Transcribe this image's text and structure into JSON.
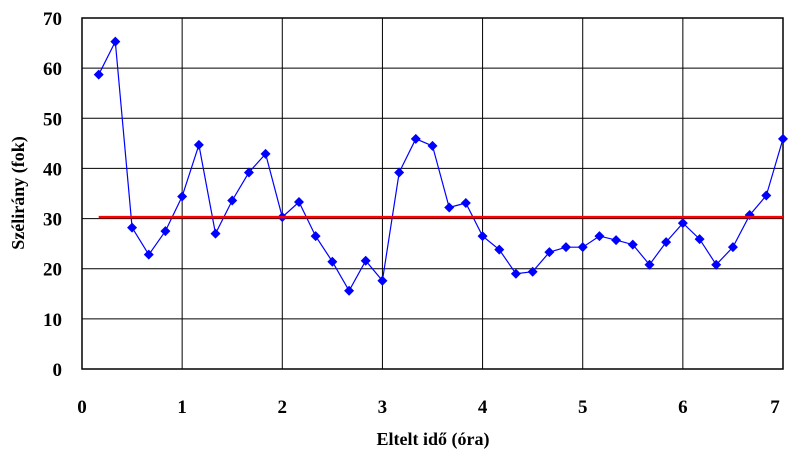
{
  "chart_data": {
    "type": "line",
    "title": "",
    "xlabel": "Eltelt idő (óra)",
    "ylabel": "Szélirány (fok)",
    "xlim": [
      0,
      7
    ],
    "ylim": [
      0,
      70
    ],
    "xticks": [
      0,
      1,
      2,
      3,
      4,
      5,
      6,
      7
    ],
    "yticks": [
      0,
      10,
      20,
      30,
      40,
      50,
      60,
      70
    ],
    "grid": true,
    "series": [
      {
        "color": "#0000ff",
        "marker": "diamond",
        "x": [
          0.167,
          0.333,
          0.5,
          0.667,
          0.833,
          1.0,
          1.167,
          1.333,
          1.5,
          1.667,
          1.833,
          2.0,
          2.167,
          2.333,
          2.5,
          2.667,
          2.833,
          3.0,
          3.167,
          3.333,
          3.5,
          3.667,
          3.833,
          4.0,
          4.167,
          4.333,
          4.5,
          4.667,
          4.833,
          5.0,
          5.167,
          5.333,
          5.5,
          5.667,
          5.833,
          6.0,
          6.167,
          6.333,
          6.5,
          6.667,
          6.833,
          7.0
        ],
        "values": [
          58.7,
          65.3,
          28.2,
          22.8,
          27.5,
          34.4,
          44.7,
          27.0,
          33.6,
          39.2,
          42.9,
          30.3,
          33.3,
          26.5,
          21.4,
          15.6,
          21.6,
          17.6,
          39.2,
          45.9,
          44.5,
          32.2,
          33.1,
          26.5,
          23.8,
          19.0,
          19.4,
          23.3,
          24.3,
          24.3,
          26.5,
          25.7,
          24.8,
          20.8,
          25.3,
          29.1,
          25.9,
          20.8,
          24.3,
          30.7,
          34.6,
          45.9
        ]
      },
      {
        "color": "#ff0000",
        "marker": "none",
        "x": [
          0.167,
          7.0
        ],
        "values": [
          30.3,
          30.3
        ]
      }
    ]
  }
}
